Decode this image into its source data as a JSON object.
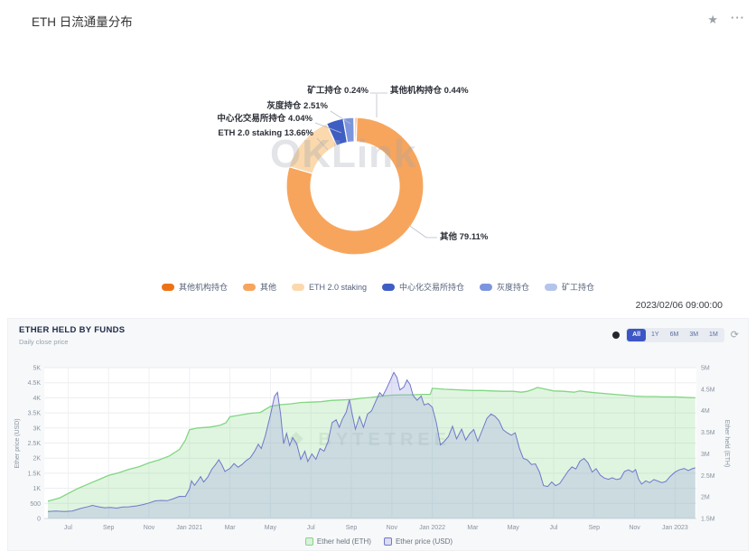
{
  "page": {
    "title": "ETH 日流通量分布"
  },
  "icons": {
    "favorite": "★",
    "more": "···",
    "options_dot": "",
    "refresh": "⟳",
    "bytetree_logo": "❖"
  },
  "chart_data": [
    {
      "type": "pie",
      "title": "ETH 日流通量分布",
      "watermark": "OKLink",
      "timestamp": "2023/02/06 09:00:00",
      "labels": [
        "其他机构持仓",
        "其他",
        "ETH 2.0 staking",
        "中心化交易所持仓",
        "灰度持仓",
        "矿工持仓"
      ],
      "values": [
        0.44,
        79.11,
        13.66,
        4.04,
        2.51,
        0.24
      ],
      "display_values": [
        "0.44%",
        "79.11%",
        "13.66%",
        "4.04%",
        "2.51%",
        "0.24%"
      ],
      "colors": [
        "#ed7216",
        "#f7a55d",
        "#fbd9ad",
        "#3f5ec4",
        "#7d95dd",
        "#b4c4ec"
      ],
      "legend_position": "bottom",
      "donut": true
    },
    {
      "type": "area",
      "title": "ETHER HELD BY FUNDS",
      "subtitle": "Daily close price",
      "watermark": "BYTETREE",
      "range_buttons": [
        "All",
        "1Y",
        "6M",
        "3M",
        "1M"
      ],
      "active_range": "All",
      "grid": true,
      "legend_position": "bottom",
      "x_axis": {
        "unit": "months from Jun 2020",
        "min": 0,
        "max": 32,
        "ticks": [
          {
            "t": 1,
            "label": "Jul"
          },
          {
            "t": 3,
            "label": "Sep"
          },
          {
            "t": 5,
            "label": "Nov"
          },
          {
            "t": 7,
            "label": "Jan 2021"
          },
          {
            "t": 9,
            "label": "Mar"
          },
          {
            "t": 11,
            "label": "May"
          },
          {
            "t": 13,
            "label": "Jul"
          },
          {
            "t": 15,
            "label": "Sep"
          },
          {
            "t": 17,
            "label": "Nov"
          },
          {
            "t": 19,
            "label": "Jan 2022"
          },
          {
            "t": 21,
            "label": "Mar"
          },
          {
            "t": 23,
            "label": "May"
          },
          {
            "t": 25,
            "label": "Jul"
          },
          {
            "t": 27,
            "label": "Sep"
          },
          {
            "t": 29,
            "label": "Nov"
          },
          {
            "t": 31,
            "label": "Jan 2023"
          }
        ]
      },
      "y_left": {
        "title": "Ether price (USD)",
        "min": 0,
        "max": 5000,
        "ticks": [
          "5K",
          "4.5K",
          "4K",
          "3.5K",
          "3K",
          "2.5K",
          "2K",
          "1.5K",
          "1K",
          "500",
          "0"
        ]
      },
      "y_right": {
        "title": "Ether held (ETH)",
        "min": 1500000,
        "max": 5000000,
        "ticks": [
          "5M",
          "4.5M",
          "4M",
          "3.5M",
          "3M",
          "2.5M",
          "2M",
          "1.5M"
        ]
      },
      "series": [
        {
          "name": "Ether held (ETH)",
          "axis": "right",
          "unit": "million ETH",
          "color": "#82d683",
          "fill": "rgba(130,214,131,0.25)",
          "points": [
            [
              0,
              1.9
            ],
            [
              0.6,
              1.98
            ],
            [
              1,
              2.08
            ],
            [
              1.5,
              2.2
            ],
            [
              2,
              2.3
            ],
            [
              2.5,
              2.4
            ],
            [
              3,
              2.5
            ],
            [
              3.5,
              2.56
            ],
            [
              4,
              2.64
            ],
            [
              4.5,
              2.7
            ],
            [
              5,
              2.79
            ],
            [
              5.5,
              2.86
            ],
            [
              6,
              2.95
            ],
            [
              6.5,
              3.1
            ],
            [
              6.8,
              3.32
            ],
            [
              7,
              3.56
            ],
            [
              7.4,
              3.6
            ],
            [
              8,
              3.62
            ],
            [
              8.5,
              3.66
            ],
            [
              8.8,
              3.72
            ],
            [
              9,
              3.86
            ],
            [
              9.5,
              3.9
            ],
            [
              10,
              3.94
            ],
            [
              10.5,
              3.96
            ],
            [
              11,
              4.1
            ],
            [
              11.5,
              4.14
            ],
            [
              12,
              4.16
            ],
            [
              12.5,
              4.19
            ],
            [
              13,
              4.2
            ],
            [
              13.5,
              4.21
            ],
            [
              14,
              4.24
            ],
            [
              14.5,
              4.25
            ],
            [
              15,
              4.26
            ],
            [
              15.5,
              4.29
            ],
            [
              16,
              4.31
            ],
            [
              16.5,
              4.34
            ],
            [
              17,
              4.36
            ],
            [
              17.5,
              4.37
            ],
            [
              18,
              4.37
            ],
            [
              18.5,
              4.38
            ],
            [
              18.9,
              4.38
            ],
            [
              19,
              4.52
            ],
            [
              19.3,
              4.51
            ],
            [
              19.6,
              4.5
            ],
            [
              20,
              4.49
            ],
            [
              20.5,
              4.48
            ],
            [
              21,
              4.47
            ],
            [
              21.5,
              4.47
            ],
            [
              22,
              4.46
            ],
            [
              22.5,
              4.45
            ],
            [
              23,
              4.45
            ],
            [
              23.4,
              4.43
            ],
            [
              23.7,
              4.45
            ],
            [
              24,
              4.5
            ],
            [
              24.2,
              4.54
            ],
            [
              24.5,
              4.51
            ],
            [
              25,
              4.46
            ],
            [
              25.5,
              4.45
            ],
            [
              26,
              4.43
            ],
            [
              26.3,
              4.46
            ],
            [
              26.6,
              4.44
            ],
            [
              27,
              4.42
            ],
            [
              27.5,
              4.4
            ],
            [
              28,
              4.38
            ],
            [
              28.5,
              4.36
            ],
            [
              29,
              4.34
            ],
            [
              29.5,
              4.33
            ],
            [
              30,
              4.33
            ],
            [
              30.5,
              4.32
            ],
            [
              31,
              4.32
            ],
            [
              31.5,
              4.31
            ],
            [
              32,
              4.3
            ]
          ]
        },
        {
          "name": "Ether price (USD)",
          "axis": "left",
          "unit": "USD",
          "color": "#7177c9",
          "fill": "rgba(154,160,224,0.30)",
          "points": [
            [
              0,
              230
            ],
            [
              0.4,
              245
            ],
            [
              0.8,
              235
            ],
            [
              1.2,
              250
            ],
            [
              1.6,
              330
            ],
            [
              2,
              395
            ],
            [
              2.2,
              435
            ],
            [
              2.5,
              390
            ],
            [
              2.8,
              355
            ],
            [
              3.1,
              365
            ],
            [
              3.4,
              345
            ],
            [
              3.7,
              380
            ],
            [
              4,
              385
            ],
            [
              4.4,
              420
            ],
            [
              4.7,
              460
            ],
            [
              5,
              515
            ],
            [
              5.3,
              585
            ],
            [
              5.6,
              600
            ],
            [
              5.9,
              590
            ],
            [
              6.2,
              655
            ],
            [
              6.5,
              735
            ],
            [
              6.8,
              730
            ],
            [
              7,
              980
            ],
            [
              7.1,
              1250
            ],
            [
              7.25,
              1100
            ],
            [
              7.4,
              1240
            ],
            [
              7.55,
              1390
            ],
            [
              7.7,
              1210
            ],
            [
              7.9,
              1370
            ],
            [
              8.1,
              1630
            ],
            [
              8.3,
              1800
            ],
            [
              8.45,
              1950
            ],
            [
              8.6,
              1780
            ],
            [
              8.75,
              1560
            ],
            [
              9,
              1660
            ],
            [
              9.2,
              1820
            ],
            [
              9.4,
              1700
            ],
            [
              9.6,
              1790
            ],
            [
              9.8,
              1920
            ],
            [
              10,
              2010
            ],
            [
              10.2,
              2210
            ],
            [
              10.4,
              2460
            ],
            [
              10.55,
              2320
            ],
            [
              10.75,
              2750
            ],
            [
              11,
              3430
            ],
            [
              11.2,
              4050
            ],
            [
              11.35,
              4180
            ],
            [
              11.5,
              3480
            ],
            [
              11.65,
              2480
            ],
            [
              11.8,
              2820
            ],
            [
              11.95,
              2420
            ],
            [
              12.1,
              2680
            ],
            [
              12.3,
              2480
            ],
            [
              12.5,
              1960
            ],
            [
              12.7,
              2230
            ],
            [
              12.85,
              1890
            ],
            [
              13.05,
              2140
            ],
            [
              13.25,
              1960
            ],
            [
              13.45,
              2320
            ],
            [
              13.65,
              2230
            ],
            [
              13.85,
              2550
            ],
            [
              14.05,
              3180
            ],
            [
              14.25,
              3270
            ],
            [
              14.4,
              3020
            ],
            [
              14.55,
              3280
            ],
            [
              14.75,
              3530
            ],
            [
              14.9,
              3940
            ],
            [
              15.05,
              3440
            ],
            [
              15.2,
              2960
            ],
            [
              15.4,
              3380
            ],
            [
              15.6,
              3020
            ],
            [
              15.8,
              3460
            ],
            [
              16,
              3570
            ],
            [
              16.2,
              3880
            ],
            [
              16.4,
              4170
            ],
            [
              16.55,
              4060
            ],
            [
              16.75,
              4320
            ],
            [
              16.95,
              4620
            ],
            [
              17.1,
              4840
            ],
            [
              17.25,
              4680
            ],
            [
              17.4,
              4260
            ],
            [
              17.6,
              4360
            ],
            [
              17.75,
              4590
            ],
            [
              17.9,
              4440
            ],
            [
              18.05,
              4080
            ],
            [
              18.25,
              3920
            ],
            [
              18.45,
              4060
            ],
            [
              18.6,
              3760
            ],
            [
              18.8,
              3810
            ],
            [
              19,
              3690
            ],
            [
              19.2,
              3180
            ],
            [
              19.4,
              2440
            ],
            [
              19.6,
              2560
            ],
            [
              19.8,
              2720
            ],
            [
              20,
              3060
            ],
            [
              20.2,
              2640
            ],
            [
              20.45,
              2960
            ],
            [
              20.65,
              2600
            ],
            [
              20.85,
              2810
            ],
            [
              21.05,
              2950
            ],
            [
              21.25,
              2560
            ],
            [
              21.5,
              2980
            ],
            [
              21.7,
              3320
            ],
            [
              21.9,
              3460
            ],
            [
              22.1,
              3390
            ],
            [
              22.3,
              3240
            ],
            [
              22.5,
              2940
            ],
            [
              22.7,
              2840
            ],
            [
              22.9,
              2760
            ],
            [
              23.1,
              2840
            ],
            [
              23.3,
              2340
            ],
            [
              23.5,
              1990
            ],
            [
              23.7,
              1940
            ],
            [
              23.9,
              1790
            ],
            [
              24.1,
              1810
            ],
            [
              24.3,
              1540
            ],
            [
              24.5,
              1090
            ],
            [
              24.7,
              1060
            ],
            [
              24.9,
              1210
            ],
            [
              25.1,
              1090
            ],
            [
              25.3,
              1160
            ],
            [
              25.5,
              1360
            ],
            [
              25.7,
              1560
            ],
            [
              25.9,
              1710
            ],
            [
              26.1,
              1640
            ],
            [
              26.3,
              1900
            ],
            [
              26.5,
              1990
            ],
            [
              26.7,
              1840
            ],
            [
              26.9,
              1540
            ],
            [
              27.1,
              1650
            ],
            [
              27.3,
              1440
            ],
            [
              27.5,
              1340
            ],
            [
              27.7,
              1300
            ],
            [
              27.9,
              1350
            ],
            [
              28.1,
              1290
            ],
            [
              28.3,
              1320
            ],
            [
              28.5,
              1560
            ],
            [
              28.7,
              1610
            ],
            [
              28.9,
              1540
            ],
            [
              29.05,
              1620
            ],
            [
              29.2,
              1300
            ],
            [
              29.35,
              1140
            ],
            [
              29.55,
              1250
            ],
            [
              29.75,
              1190
            ],
            [
              29.95,
              1290
            ],
            [
              30.15,
              1240
            ],
            [
              30.35,
              1190
            ],
            [
              30.55,
              1230
            ],
            [
              30.75,
              1390
            ],
            [
              31,
              1540
            ],
            [
              31.2,
              1610
            ],
            [
              31.45,
              1660
            ],
            [
              31.65,
              1590
            ],
            [
              31.85,
              1650
            ],
            [
              32,
              1680
            ]
          ]
        }
      ]
    }
  ]
}
